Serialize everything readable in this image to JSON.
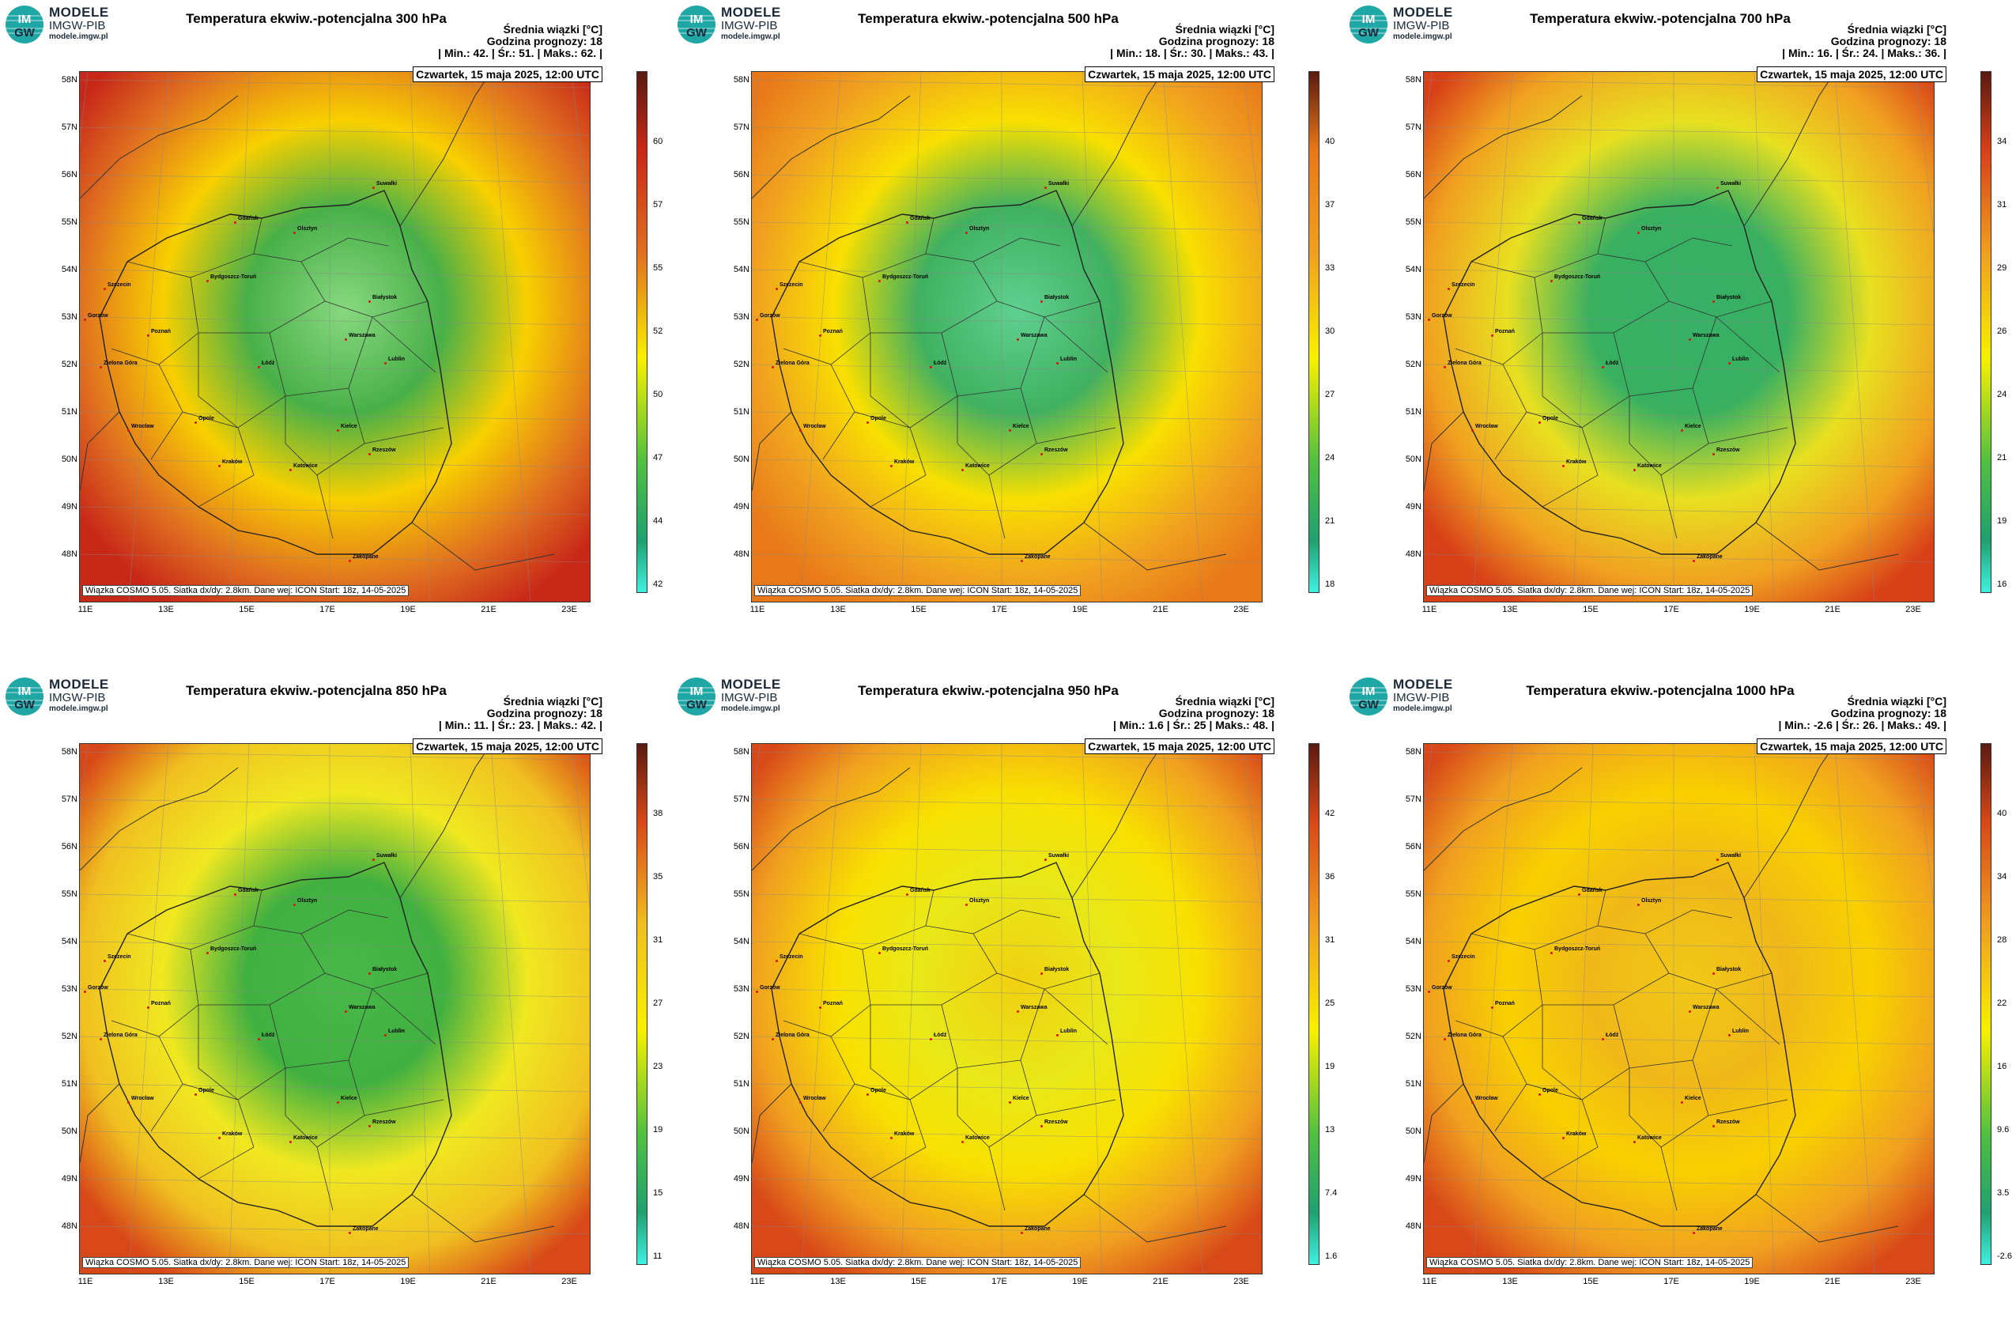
{
  "logo": {
    "title": "MODELE",
    "subtitle": "IMGW-PIB",
    "url": "modele.imgw.pl",
    "mark_top": "IM",
    "mark_bottom": "GW"
  },
  "common": {
    "average_label": "Średnia wiązki [°C]",
    "forecast_hour": "Godzina prognozy: 18",
    "date": "Czwartek, 15 maja 2025, 12:00 UTC",
    "footer": "Wiązka COSMO 5.05. Siatka dx/dy: 2.8km. Dane wej: ICON Start: 18z, 14-05-2025",
    "lat_labels": [
      "58N",
      "57N",
      "56N",
      "55N",
      "54N",
      "53N",
      "52N",
      "51N",
      "50N",
      "49N",
      "48N"
    ],
    "lon_labels": [
      "11E",
      "13E",
      "15E",
      "17E",
      "19E",
      "21E",
      "23E"
    ]
  },
  "cities": [
    "Gdańsk",
    "Olsztyn",
    "Suwałki",
    "Szczecin",
    "Bydgoszcz-Toruń",
    "Białystok",
    "Gorzów",
    "Poznań",
    "Warszawa",
    "Zielona Góra",
    "Łódź",
    "Lublin",
    "Wrocław",
    "Kielce",
    "Opole",
    "Katowice",
    "Kraków",
    "Rzeszów",
    "Zakopane"
  ],
  "panels": [
    {
      "title": "Temperatura ekwiw.-potencjalna 300 hPa",
      "stats": "| Min.:    42. | Śr.:    51. | Maks.:   62. |",
      "colorbar_ticks": [
        "60",
        "57",
        "55",
        "52",
        "50",
        "47",
        "44",
        "42"
      ],
      "colors": [
        "#c82818",
        "#e07020",
        "#f8d000",
        "#48b048",
        "#88d880"
      ]
    },
    {
      "title": "Temperatura ekwiw.-potencjalna 500 hPa",
      "stats": "| Min.:    18. | Śr.:    30. | Maks.:   43. |",
      "colorbar_ticks": [
        "40",
        "37",
        "33",
        "30",
        "27",
        "24",
        "21",
        "18"
      ],
      "colors": [
        "#e87818",
        "#f0a020",
        "#f8e000",
        "#40b060",
        "#60d090"
      ]
    },
    {
      "title": "Temperatura ekwiw.-potencjalna 700 hPa",
      "stats": "| Min.:    16. | Śr.:    24. | Maks.:   36. |",
      "colorbar_ticks": [
        "34",
        "31",
        "29",
        "26",
        "24",
        "21",
        "19",
        "16"
      ],
      "colors": [
        "#d84018",
        "#f0a020",
        "#e8e020",
        "#38b060",
        "#38b068"
      ]
    },
    {
      "title": "Temperatura ekwiw.-potencjalna 850 hPa",
      "stats": "| Min.:    11. | Śr.:    23. | Maks.:   42. |",
      "colorbar_ticks": [
        "38",
        "35",
        "31",
        "27",
        "23",
        "19",
        "15",
        "11"
      ],
      "colors": [
        "#d84818",
        "#f0c020",
        "#f0e820",
        "#40b040",
        "#48b848"
      ]
    },
    {
      "title": "Temperatura ekwiw.-potencjalna 950 hPa",
      "stats": "| Min.:   1.6 | Śr.:    25 | Maks.:   48. |",
      "colorbar_ticks": [
        "42",
        "36",
        "31",
        "25",
        "19",
        "13",
        "7.4",
        "1.6"
      ],
      "colors": [
        "#d84818",
        "#f0a020",
        "#f8e000",
        "#e8e818",
        "#f0d010"
      ]
    },
    {
      "title": "Temperatura ekwiw.-potencjalna 1000 hPa",
      "stats": "| Min.:   -2.6 | Śr.:    26. | Maks.:   49. |",
      "colorbar_ticks": [
        "40",
        "34",
        "28",
        "22",
        "16",
        "9.6",
        "3.5",
        "-2.6"
      ],
      "colors": [
        "#d84818",
        "#f0a020",
        "#f8d000",
        "#f0b818",
        "#f0c818"
      ]
    }
  ]
}
